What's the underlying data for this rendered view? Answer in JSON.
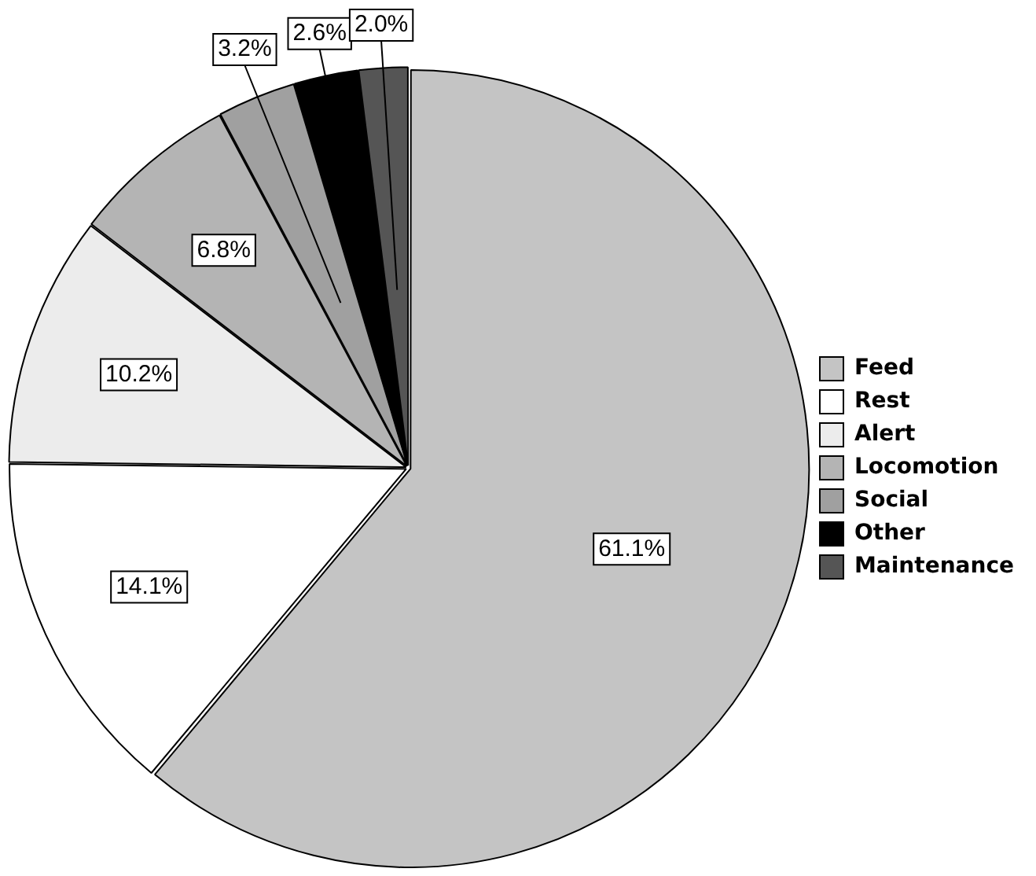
{
  "chart_data": {
    "type": "pie",
    "categories": [
      "Feed",
      "Rest",
      "Alert",
      "Locomotion",
      "Social",
      "Other",
      "Maintenance"
    ],
    "values": [
      61.1,
      14.1,
      10.2,
      6.8,
      3.2,
      2.6,
      2.0
    ],
    "colors": [
      "#c4c4c4",
      "#ffffff",
      "#ececec",
      "#b4b4b4",
      "#a0a0a0",
      "#000000",
      "#555555"
    ],
    "value_labels": [
      "61.1%",
      "14.1%",
      "10.2%",
      "6.8%",
      "3.2%",
      "2.6%",
      "2.0%"
    ],
    "legend": "right"
  }
}
